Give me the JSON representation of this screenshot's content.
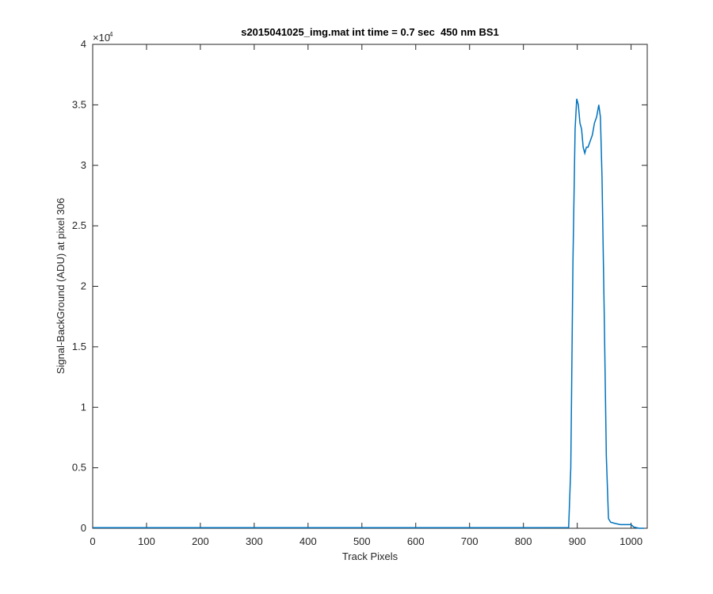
{
  "chart_data": {
    "type": "line",
    "title": "s2015041025_img.mat int time = 0.7 sec  450 nm BS1",
    "x_label": "Track Pixels",
    "y_label": "Signal-BackGround (ADU) at pixel 306",
    "y_exponent_base": "×10",
    "y_exponent_power": "4",
    "xlim": [
      0,
      1030
    ],
    "xticks": [
      0,
      100,
      200,
      300,
      400,
      500,
      600,
      700,
      800,
      900,
      1000
    ],
    "ylim": [
      0,
      40000
    ],
    "yticks": [
      {
        "value": 0,
        "label": "0"
      },
      {
        "value": 5000,
        "label": "0.5"
      },
      {
        "value": 10000,
        "label": "1"
      },
      {
        "value": 15000,
        "label": "1.5"
      },
      {
        "value": 20000,
        "label": "2"
      },
      {
        "value": 25000,
        "label": "2.5"
      },
      {
        "value": 30000,
        "label": "3"
      },
      {
        "value": 35000,
        "label": "3.5"
      },
      {
        "value": 40000,
        "label": "4"
      }
    ],
    "grid": false,
    "x": [
      1,
      100,
      200,
      300,
      400,
      500,
      600,
      700,
      800,
      884,
      888,
      892,
      896,
      899,
      902,
      905,
      908,
      911,
      914,
      917,
      920,
      924,
      928,
      932,
      936,
      940,
      943,
      946,
      950,
      954,
      958,
      962,
      970,
      980,
      990,
      1000,
      1005,
      1015,
      1024
    ],
    "series": [
      {
        "color": "#0072bd",
        "values": [
          50,
          50,
          50,
          50,
          50,
          50,
          50,
          50,
          50,
          60,
          5000,
          22000,
          33000,
          35500,
          35000,
          33500,
          33000,
          31500,
          31000,
          31500,
          31500,
          32000,
          32500,
          33500,
          34000,
          35000,
          34000,
          29000,
          18000,
          6000,
          800,
          500,
          400,
          300,
          300,
          300,
          100,
          0,
          0
        ]
      }
    ]
  }
}
